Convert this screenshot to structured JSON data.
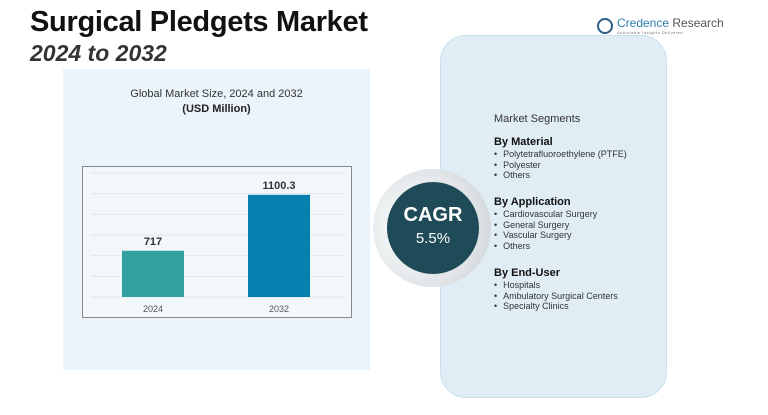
{
  "header": {
    "title": "Surgical Pledgets Market",
    "subtitle": "2024 to 2032"
  },
  "logo": {
    "name_1": "Credence",
    "name_2": " Research",
    "tagline": "Actionable Insights Delivered"
  },
  "chart_data": {
    "type": "bar",
    "title": "Global Market Size, 2024 and 2032",
    "unit": "(USD Million)",
    "categories": [
      "2024",
      "2032"
    ],
    "values": [
      717,
      1100.3
    ],
    "value_labels": [
      "717",
      "1100.3"
    ],
    "colors": [
      "#33a19f",
      "#0780b0"
    ],
    "ylim": [
      400,
      1250
    ],
    "grid": true,
    "legend": "none"
  },
  "cagr": {
    "label": "CAGR",
    "value": "5.5%"
  },
  "segments": {
    "title": "Market Segments",
    "groups": [
      {
        "heading": "By Material",
        "items": [
          "Polytetrafluoroethylene (PTFE)",
          "Polyester",
          "Others"
        ]
      },
      {
        "heading": "By Application",
        "items": [
          "Cardiovascular Surgery",
          "General Surgery",
          "Vascular Surgery",
          "Others"
        ]
      },
      {
        "heading": "By End-User",
        "items": [
          "Hospitals",
          "Ambulatory Surgical Centers",
          "Specialty Clinics"
        ]
      }
    ]
  }
}
